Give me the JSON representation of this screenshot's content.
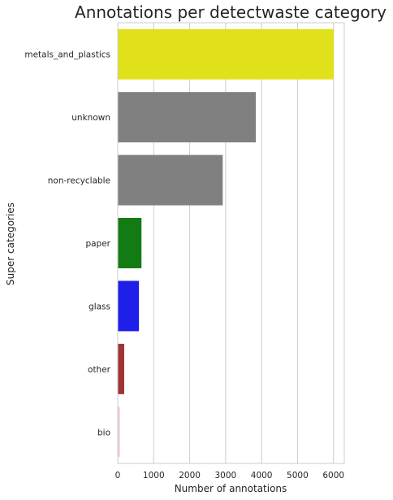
{
  "chart_data": {
    "type": "bar",
    "orientation": "horizontal",
    "title": "Annotations per detectwaste category",
    "xlabel": "Number of annotations",
    "ylabel": "Super categories",
    "categories": [
      "metals_and_plastics",
      "unknown",
      "non-recyclable",
      "paper",
      "glass",
      "other",
      "bio"
    ],
    "values": [
      6010,
      3840,
      2920,
      660,
      590,
      180,
      55
    ],
    "colors": [
      "#e0e01b",
      "#808080",
      "#808080",
      "#137b13",
      "#1f1fea",
      "#9f3434",
      "#f2c2d9"
    ],
    "xlim": [
      0,
      6300
    ],
    "xticks": [
      0,
      1000,
      2000,
      3000,
      4000,
      5000,
      6000
    ],
    "grid": "vertical",
    "background": "#ffffff"
  }
}
